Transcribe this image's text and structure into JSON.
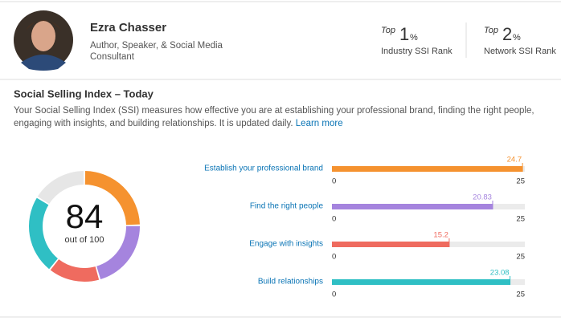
{
  "profile": {
    "name": "Ezra Chasser",
    "headline": "Author, Speaker, & Social Media Consultant"
  },
  "ranks": [
    {
      "prefix": "Top",
      "value": 1,
      "unit": "%",
      "label": "Industry SSI Rank"
    },
    {
      "prefix": "Top",
      "value": 2,
      "unit": "%",
      "label": "Network SSI Rank"
    }
  ],
  "section": {
    "title": "Social Selling Index – Today",
    "description": "Your Social Selling Index (SSI) measures how effective you are at establishing your professional brand, finding the right people, engaging with insights, and building relationships. It is updated daily.",
    "link": "Learn more"
  },
  "score": {
    "value": 84,
    "label": "out of 100",
    "max": 100,
    "remainder_color": "#e6e6e6"
  },
  "scale": {
    "min": 0,
    "max": 25
  },
  "components": [
    {
      "name": "Establish your professional brand",
      "value": 24.7,
      "color": "#f5922f"
    },
    {
      "name": "Find the right people",
      "value": 20.83,
      "color": "#a584de"
    },
    {
      "name": "Engage with insights",
      "value": 15.2,
      "color": "#ef6b5f"
    },
    {
      "name": "Build relationships",
      "value": 23.08,
      "color": "#2fbfc4"
    }
  ]
}
